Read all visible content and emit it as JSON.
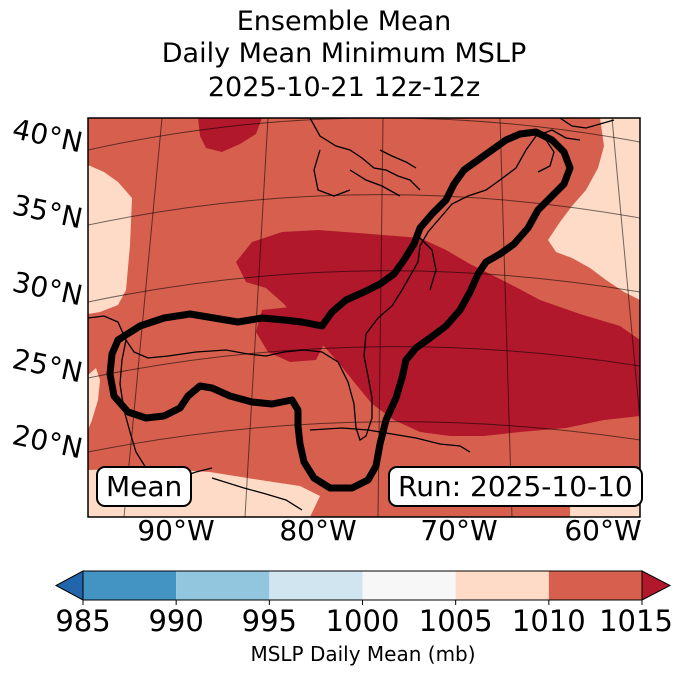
{
  "title": {
    "line1": "Ensemble Mean",
    "line2": "Daily Mean Minimum MSLP",
    "line3": "2025-10-21 12z-12z"
  },
  "map": {
    "lat_labels": [
      "40°N",
      "35°N",
      "30°N",
      "25°N",
      "20°N"
    ],
    "lon_labels": [
      "90°W",
      "80°W",
      "70°W",
      "60°W"
    ],
    "mean_label": "Mean",
    "run_label": "Run: 2025-10-10",
    "colors": {
      "c1005_1010": "#fddbc7",
      "c1010_1015": "#d6604d",
      "c_over_1015": "#b2182b",
      "contour": "#000000"
    }
  },
  "colorbar": {
    "label": "MSLP Daily Mean (mb)",
    "ticks": [
      "985",
      "990",
      "995",
      "1000",
      "1005",
      "1010",
      "1015"
    ],
    "colors": [
      "#4393c3",
      "#92c5de",
      "#d1e5f0",
      "#f7f7f7",
      "#fddbc7",
      "#d6604d"
    ],
    "under_color": "#2166ac",
    "over_color": "#b2182b"
  }
}
